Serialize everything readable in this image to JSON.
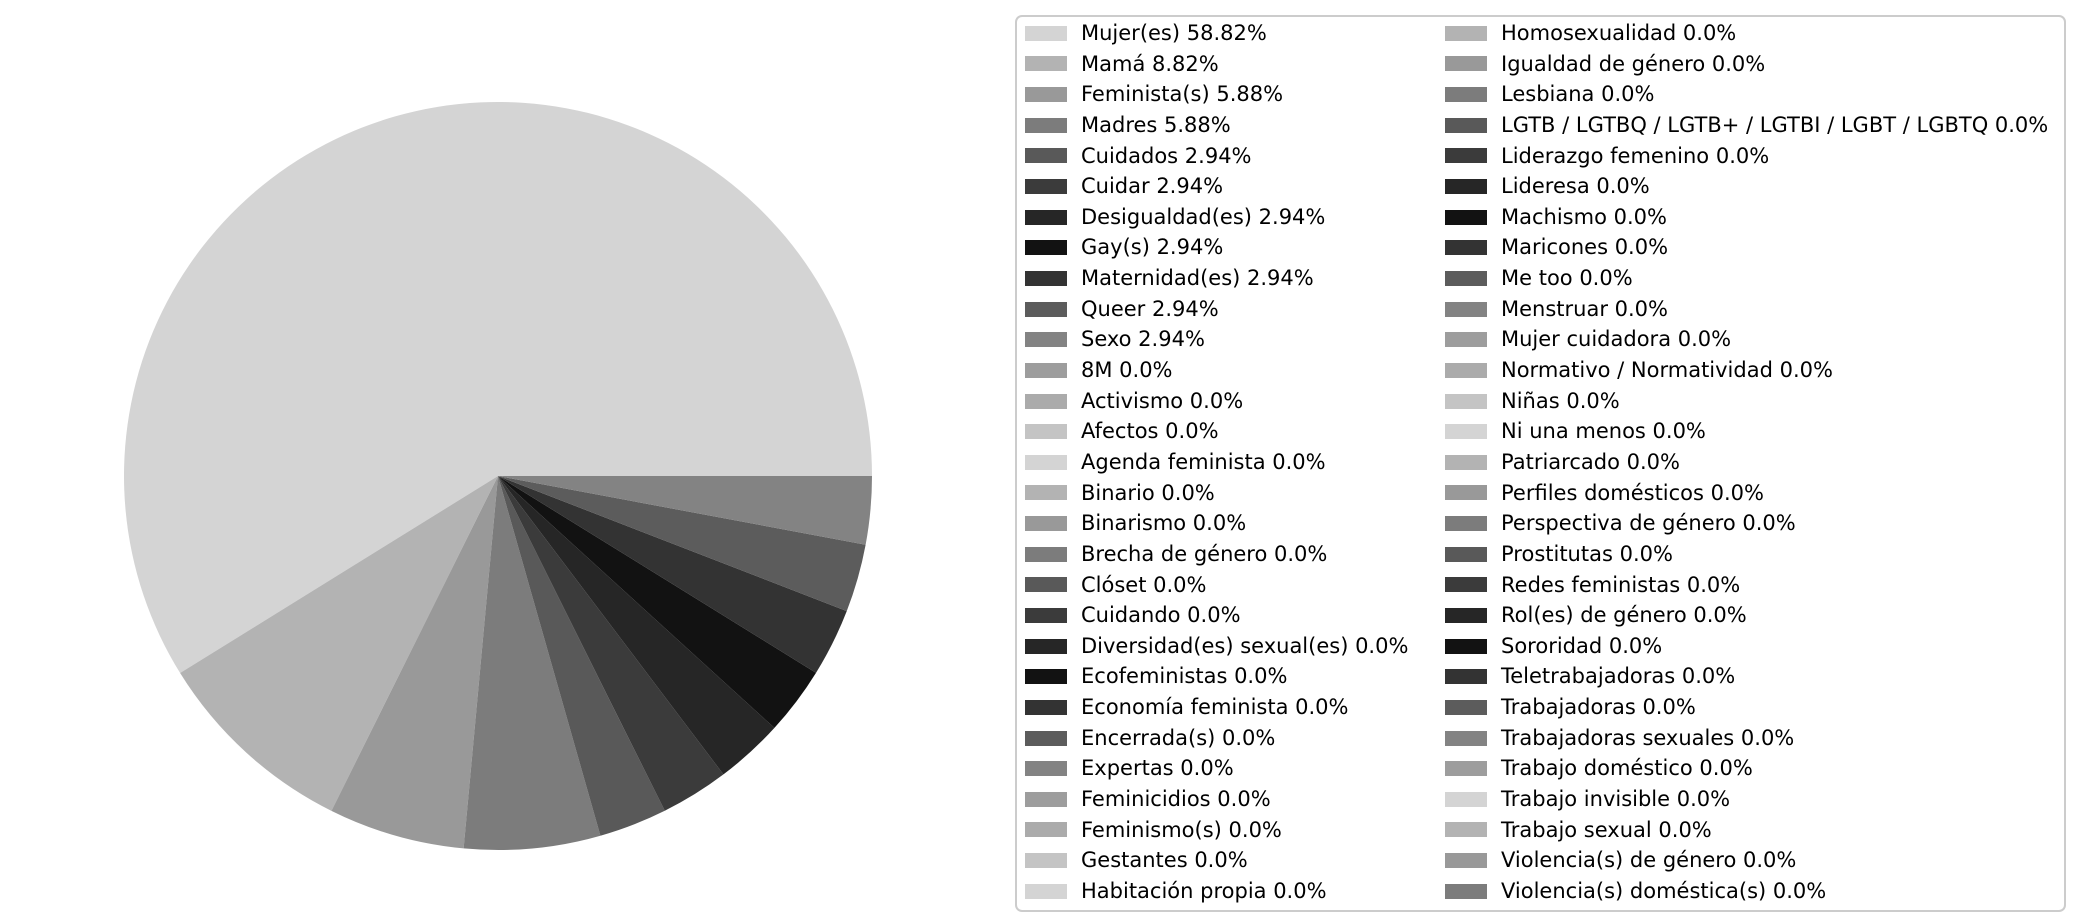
{
  "chart_data": {
    "type": "pie",
    "title": "",
    "legend_position": "right",
    "start_angle_deg": 0,
    "direction": "counterclockwise",
    "background": "#ffffff",
    "items": [
      {
        "label": "Mujer(es)",
        "value": 58.82,
        "legend_text": "Mujer(es) 58.82%",
        "color": "#d4d4d4"
      },
      {
        "label": "Mamá",
        "value": 8.82,
        "legend_text": "Mamá 8.82%",
        "color": "#b3b3b3"
      },
      {
        "label": "Feminista(s)",
        "value": 5.88,
        "legend_text": "Feminista(s) 5.88%",
        "color": "#999999"
      },
      {
        "label": "Madres",
        "value": 5.88,
        "legend_text": "Madres 5.88%",
        "color": "#7c7c7c"
      },
      {
        "label": "Cuidados",
        "value": 2.94,
        "legend_text": "Cuidados 2.94%",
        "color": "#595959"
      },
      {
        "label": "Cuidar",
        "value": 2.94,
        "legend_text": "Cuidar 2.94%",
        "color": "#3b3b3b"
      },
      {
        "label": "Desigualdad(es)",
        "value": 2.94,
        "legend_text": "Desigualdad(es) 2.94%",
        "color": "#262626"
      },
      {
        "label": "Gay(s)",
        "value": 2.94,
        "legend_text": "Gay(s) 2.94%",
        "color": "#121212"
      },
      {
        "label": "Maternidad(es)",
        "value": 2.94,
        "legend_text": "Maternidad(es) 2.94%",
        "color": "#333333"
      },
      {
        "label": "Queer",
        "value": 2.94,
        "legend_text": "Queer 2.94%",
        "color": "#5c5c5c"
      },
      {
        "label": "Sexo",
        "value": 2.94,
        "legend_text": "Sexo 2.94%",
        "color": "#838383"
      },
      {
        "label": "8M",
        "value": 0.0,
        "legend_text": "8M 0.0%",
        "color": "#9d9d9d"
      },
      {
        "label": "Activismo",
        "value": 0.0,
        "legend_text": "Activismo 0.0%",
        "color": "#ababab"
      },
      {
        "label": "Afectos",
        "value": 0.0,
        "legend_text": "Afectos 0.0%",
        "color": "#c4c4c4"
      },
      {
        "label": "Agenda feminista",
        "value": 0.0,
        "legend_text": "Agenda feminista 0.0%",
        "color": "#d4d4d4"
      },
      {
        "label": "Binario",
        "value": 0.0,
        "legend_text": "Binario 0.0%",
        "color": "#b3b3b3"
      },
      {
        "label": "Binarismo",
        "value": 0.0,
        "legend_text": "Binarismo 0.0%",
        "color": "#999999"
      },
      {
        "label": "Brecha de género",
        "value": 0.0,
        "legend_text": "Brecha de género 0.0%",
        "color": "#7c7c7c"
      },
      {
        "label": "Clóset",
        "value": 0.0,
        "legend_text": "Clóset 0.0%",
        "color": "#595959"
      },
      {
        "label": "Cuidando",
        "value": 0.0,
        "legend_text": "Cuidando 0.0%",
        "color": "#3b3b3b"
      },
      {
        "label": "Diversidad(es) sexual(es)",
        "value": 0.0,
        "legend_text": "Diversidad(es) sexual(es) 0.0%",
        "color": "#262626"
      },
      {
        "label": "Ecofeministas",
        "value": 0.0,
        "legend_text": "Ecofeministas 0.0%",
        "color": "#121212"
      },
      {
        "label": "Economía feminista",
        "value": 0.0,
        "legend_text": "Economía feminista 0.0%",
        "color": "#333333"
      },
      {
        "label": "Encerrada(s)",
        "value": 0.0,
        "legend_text": "Encerrada(s) 0.0%",
        "color": "#5c5c5c"
      },
      {
        "label": "Expertas",
        "value": 0.0,
        "legend_text": "Expertas 0.0%",
        "color": "#838383"
      },
      {
        "label": "Feminicidios",
        "value": 0.0,
        "legend_text": "Feminicidios 0.0%",
        "color": "#9d9d9d"
      },
      {
        "label": "Feminismo(s)",
        "value": 0.0,
        "legend_text": "Feminismo(s) 0.0%",
        "color": "#ababab"
      },
      {
        "label": "Gestantes",
        "value": 0.0,
        "legend_text": "Gestantes 0.0%",
        "color": "#c4c4c4"
      },
      {
        "label": "Habitación propia",
        "value": 0.0,
        "legend_text": "Habitación propia 0.0%",
        "color": "#d4d4d4"
      },
      {
        "label": "Homosexualidad",
        "value": 0.0,
        "legend_text": "Homosexualidad 0.0%",
        "color": "#b3b3b3"
      },
      {
        "label": "Igualdad de género",
        "value": 0.0,
        "legend_text": "Igualdad de género 0.0%",
        "color": "#999999"
      },
      {
        "label": "Lesbiana",
        "value": 0.0,
        "legend_text": "Lesbiana 0.0%",
        "color": "#7c7c7c"
      },
      {
        "label": "LGTB / LGTBQ / LGTB+ / LGTBI / LGBT / LGBTQ",
        "value": 0.0,
        "legend_text": "LGTB / LGTBQ / LGTB+ / LGTBI / LGBT / LGBTQ  0.0%",
        "color": "#595959"
      },
      {
        "label": "Liderazgo femenino",
        "value": 0.0,
        "legend_text": "Liderazgo femenino 0.0%",
        "color": "#3b3b3b"
      },
      {
        "label": "Lideresa",
        "value": 0.0,
        "legend_text": "Lideresa 0.0%",
        "color": "#262626"
      },
      {
        "label": "Machismo",
        "value": 0.0,
        "legend_text": "Machismo 0.0%",
        "color": "#121212"
      },
      {
        "label": "Maricones",
        "value": 0.0,
        "legend_text": "Maricones 0.0%",
        "color": "#333333"
      },
      {
        "label": "Me too",
        "value": 0.0,
        "legend_text": "Me too 0.0%",
        "color": "#5c5c5c"
      },
      {
        "label": "Menstruar",
        "value": 0.0,
        "legend_text": "Menstruar 0.0%",
        "color": "#838383"
      },
      {
        "label": "Mujer cuidadora",
        "value": 0.0,
        "legend_text": "Mujer cuidadora 0.0%",
        "color": "#9d9d9d"
      },
      {
        "label": "Normativo / Normatividad",
        "value": 0.0,
        "legend_text": "Normativo / Normatividad 0.0%",
        "color": "#ababab"
      },
      {
        "label": "Niñas",
        "value": 0.0,
        "legend_text": "Niñas 0.0%",
        "color": "#c4c4c4"
      },
      {
        "label": "Ni una menos",
        "value": 0.0,
        "legend_text": "Ni una menos 0.0%",
        "color": "#d4d4d4"
      },
      {
        "label": "Patriarcado",
        "value": 0.0,
        "legend_text": "Patriarcado 0.0%",
        "color": "#b3b3b3"
      },
      {
        "label": "Perfiles domésticos",
        "value": 0.0,
        "legend_text": "Perfiles domésticos 0.0%",
        "color": "#999999"
      },
      {
        "label": "Perspectiva de género",
        "value": 0.0,
        "legend_text": "Perspectiva de género 0.0%",
        "color": "#7c7c7c"
      },
      {
        "label": "Prostitutas",
        "value": 0.0,
        "legend_text": "Prostitutas 0.0%",
        "color": "#595959"
      },
      {
        "label": "Redes feministas",
        "value": 0.0,
        "legend_text": "Redes feministas 0.0%",
        "color": "#3b3b3b"
      },
      {
        "label": "Rol(es) de género",
        "value": 0.0,
        "legend_text": "Rol(es) de género 0.0%",
        "color": "#262626"
      },
      {
        "label": "Sororidad",
        "value": 0.0,
        "legend_text": "Sororidad 0.0%",
        "color": "#121212"
      },
      {
        "label": "Teletrabajadoras",
        "value": 0.0,
        "legend_text": "Teletrabajadoras 0.0%",
        "color": "#333333"
      },
      {
        "label": "Trabajadoras",
        "value": 0.0,
        "legend_text": "Trabajadoras 0.0%",
        "color": "#5c5c5c"
      },
      {
        "label": "Trabajadoras sexuales",
        "value": 0.0,
        "legend_text": "Trabajadoras sexuales 0.0%",
        "color": "#838383"
      },
      {
        "label": "Trabajo doméstico",
        "value": 0.0,
        "legend_text": "Trabajo doméstico 0.0%",
        "color": "#9d9d9d"
      },
      {
        "label": "Trabajo invisible",
        "value": 0.0,
        "legend_text": "Trabajo invisible 0.0%",
        "color": "#d4d4d4"
      },
      {
        "label": "Trabajo sexual",
        "value": 0.0,
        "legend_text": "Trabajo sexual 0.0%",
        "color": "#b3b3b3"
      },
      {
        "label": "Violencia(s) de género",
        "value": 0.0,
        "legend_text": "Violencia(s) de género 0.0%",
        "color": "#999999"
      },
      {
        "label": "Violencia(s) doméstica(s)",
        "value": 0.0,
        "legend_text": "Violencia(s) doméstica(s) 0.0%",
        "color": "#7c7c7c"
      }
    ]
  },
  "legend": {
    "columns": 2,
    "rows_per_column": 29,
    "border_color": "#cccccc",
    "background": "#ffffff",
    "text_color": "#000000"
  }
}
